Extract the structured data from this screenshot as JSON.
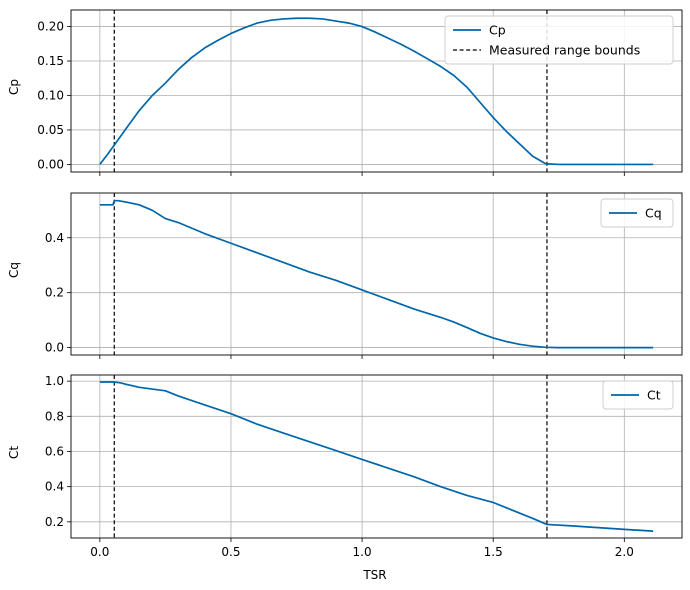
{
  "figure": {
    "xlabel": "TSR",
    "x_ticks": [
      0.0,
      0.5,
      1.0,
      1.5,
      2.0
    ],
    "x_tick_labels": [
      "0.0",
      "0.5",
      "1.0",
      "1.5",
      "2.0"
    ],
    "xlim": [
      -0.11,
      2.22
    ],
    "line_color": "#0066aa",
    "bound_color": "#000000"
  },
  "chart_data": [
    {
      "type": "line",
      "ylabel": "Cp",
      "ylim": [
        -0.011,
        0.224
      ],
      "y_ticks": [
        0.0,
        0.05,
        0.1,
        0.15,
        0.2
      ],
      "y_tick_labels": [
        "0.00",
        "0.05",
        "0.10",
        "0.15",
        "0.20"
      ],
      "grid": true,
      "legend_position": "top-right",
      "series": [
        {
          "name": "Cp",
          "x": [
            0.0,
            0.03,
            0.055,
            0.1,
            0.15,
            0.2,
            0.25,
            0.3,
            0.35,
            0.4,
            0.45,
            0.5,
            0.55,
            0.6,
            0.65,
            0.7,
            0.75,
            0.8,
            0.85,
            0.9,
            0.95,
            1.0,
            1.05,
            1.1,
            1.15,
            1.2,
            1.25,
            1.3,
            1.35,
            1.4,
            1.45,
            1.5,
            1.55,
            1.6,
            1.65,
            1.7,
            1.75,
            1.8,
            1.9,
            2.0,
            2.11
          ],
          "y": [
            0.0,
            0.015,
            0.028,
            0.052,
            0.078,
            0.1,
            0.118,
            0.138,
            0.155,
            0.169,
            0.18,
            0.19,
            0.198,
            0.205,
            0.209,
            0.211,
            0.212,
            0.212,
            0.211,
            0.208,
            0.205,
            0.2,
            0.192,
            0.183,
            0.174,
            0.164,
            0.153,
            0.142,
            0.129,
            0.112,
            0.09,
            0.068,
            0.048,
            0.03,
            0.012,
            0.001,
            0.0,
            0.0,
            0.0,
            0.0,
            0.0
          ]
        }
      ],
      "vlines": {
        "name": "Measured range bounds",
        "x": [
          0.055,
          1.705
        ]
      },
      "legend": [
        "Cp",
        "Measured range bounds"
      ]
    },
    {
      "type": "line",
      "ylabel": "Cq",
      "ylim": [
        -0.027,
        0.563
      ],
      "y_ticks": [
        0.0,
        0.2,
        0.4
      ],
      "y_tick_labels": [
        "0.0",
        "0.2",
        "0.4"
      ],
      "grid": true,
      "legend_position": "top-right",
      "series": [
        {
          "name": "Cq",
          "x": [
            0.0,
            0.05,
            0.055,
            0.07,
            0.1,
            0.15,
            0.2,
            0.25,
            0.3,
            0.35,
            0.4,
            0.5,
            0.6,
            0.7,
            0.8,
            0.9,
            1.0,
            1.1,
            1.2,
            1.3,
            1.35,
            1.4,
            1.45,
            1.5,
            1.55,
            1.6,
            1.65,
            1.7,
            1.75,
            1.8,
            1.9,
            2.0,
            2.11
          ],
          "y": [
            0.52,
            0.52,
            0.535,
            0.535,
            0.53,
            0.52,
            0.5,
            0.47,
            0.455,
            0.435,
            0.415,
            0.38,
            0.345,
            0.31,
            0.275,
            0.245,
            0.21,
            0.175,
            0.14,
            0.11,
            0.093,
            0.073,
            0.052,
            0.035,
            0.022,
            0.012,
            0.005,
            0.001,
            0.0,
            0.0,
            0.0,
            0.0,
            0.0
          ]
        }
      ],
      "vlines": {
        "name": "Measured range bounds",
        "x": [
          0.055,
          1.705
        ]
      },
      "legend": [
        "Cq"
      ]
    },
    {
      "type": "line",
      "ylabel": "Ct",
      "ylim": [
        0.108,
        1.035
      ],
      "y_ticks": [
        0.2,
        0.4,
        0.6,
        0.8,
        1.0
      ],
      "y_tick_labels": [
        "0.2",
        "0.4",
        "0.6",
        "0.8",
        "1.0"
      ],
      "grid": true,
      "legend_position": "top-right",
      "series": [
        {
          "name": "Ct",
          "x": [
            0.0,
            0.055,
            0.08,
            0.1,
            0.15,
            0.2,
            0.25,
            0.3,
            0.4,
            0.5,
            0.6,
            0.7,
            0.8,
            0.9,
            1.0,
            1.1,
            1.2,
            1.3,
            1.4,
            1.5,
            1.6,
            1.65,
            1.705,
            1.8,
            1.9,
            2.0,
            2.11
          ],
          "y": [
            0.995,
            0.995,
            0.99,
            0.982,
            0.965,
            0.955,
            0.945,
            0.915,
            0.865,
            0.815,
            0.755,
            0.705,
            0.655,
            0.605,
            0.555,
            0.505,
            0.455,
            0.4,
            0.35,
            0.31,
            0.25,
            0.22,
            0.185,
            0.177,
            0.167,
            0.157,
            0.147
          ]
        }
      ],
      "vlines": {
        "name": "Measured range bounds",
        "x": [
          0.055,
          1.705
        ]
      },
      "legend": [
        "Ct"
      ]
    }
  ]
}
